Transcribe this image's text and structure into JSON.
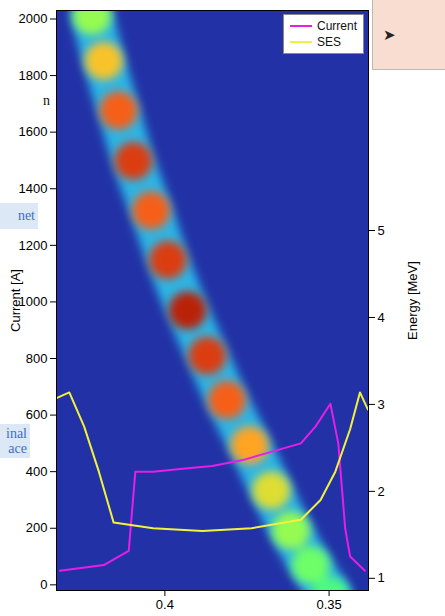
{
  "chart_data": {
    "type": "line",
    "xlim": [
      0.433,
      0.338
    ],
    "xticks": [
      0.4,
      0.35
    ],
    "ylabel": "Current [A]",
    "ylim": [
      -20,
      2030
    ],
    "yticks": [
      0,
      200,
      400,
      600,
      800,
      1000,
      1200,
      1400,
      1600,
      1800,
      2000
    ],
    "y2label": "Energy [MeV]",
    "y2lim": [
      0.86,
      7.53
    ],
    "y2ticks": [
      1,
      2,
      3,
      4,
      5
    ],
    "legend": "top-right",
    "series": [
      {
        "name": "Current",
        "color": "#e61ee6",
        "x": [
          0.432,
          0.4186,
          0.411,
          0.409,
          0.4036,
          0.3946,
          0.3856,
          0.3766,
          0.3676,
          0.3586,
          0.3541,
          0.3496,
          0.3472,
          0.3451,
          0.3436,
          0.3391
        ],
        "values": [
          50,
          70,
          120,
          400,
          400,
          410,
          420,
          440,
          470,
          500,
          560,
          640,
          500,
          200,
          100,
          50
        ]
      },
      {
        "name": "SES",
        "color": "#f2f23c",
        "x": [
          0.433,
          0.4291,
          0.4246,
          0.4201,
          0.4156,
          0.4036,
          0.3886,
          0.3736,
          0.3586,
          0.3526,
          0.3481,
          0.3436,
          0.3406,
          0.3382
        ],
        "values": [
          660,
          680,
          560,
          400,
          220,
          200,
          190,
          200,
          230,
          300,
          400,
          550,
          680,
          620
        ]
      }
    ],
    "beam": {
      "axis": "y2",
      "x": [
        0.4222,
        0.4186,
        0.4141,
        0.4096,
        0.4042,
        0.3991,
        0.3931,
        0.3871,
        0.3811,
        0.3742,
        0.3676,
        0.3616,
        0.3556,
        0.3496
      ],
      "energy": [
        7.47,
        6.95,
        6.38,
        5.8,
        5.23,
        4.66,
        4.08,
        3.56,
        3.05,
        2.53,
        2.01,
        1.55,
        1.15,
        0.8
      ],
      "intensity": [
        0.5,
        0.65,
        0.8,
        0.85,
        0.8,
        0.85,
        0.9,
        0.85,
        0.8,
        0.7,
        0.6,
        0.5,
        0.45,
        0.4
      ],
      "clim": [
        0,
        1
      ]
    },
    "annotations": [
      "n",
      "net",
      "inal",
      "ace",
      "➤"
    ]
  }
}
